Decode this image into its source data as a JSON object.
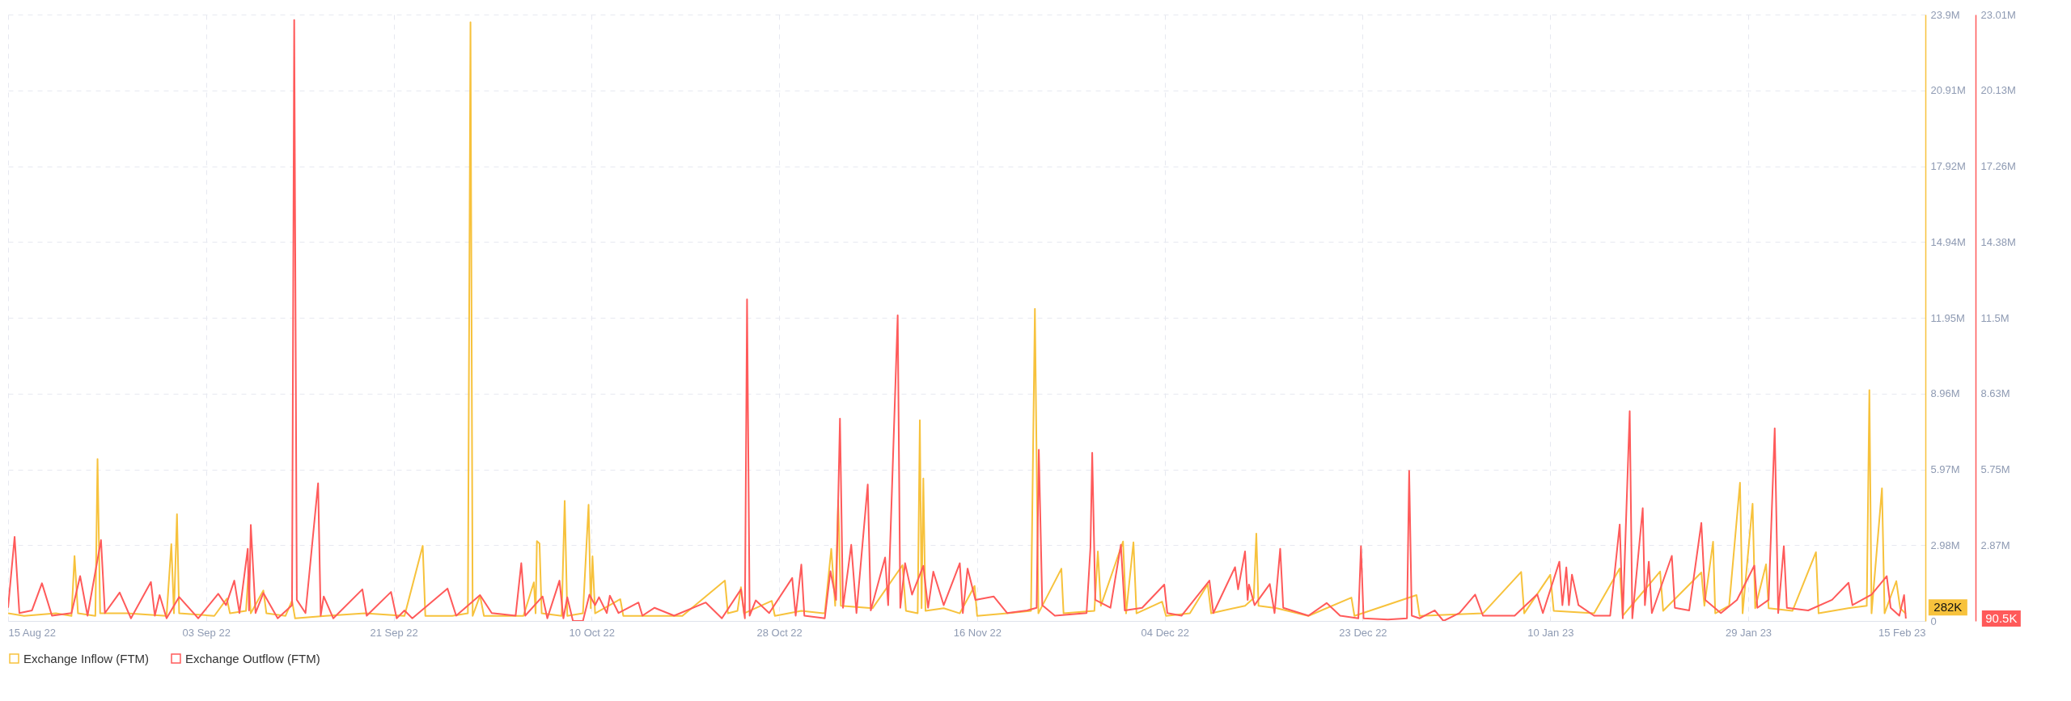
{
  "chart_data": {
    "type": "line",
    "xlim": [
      "2022-08-15",
      "2023-02-15"
    ],
    "xticks": [
      {
        "value": "2022-08-15",
        "label": "15 Aug 22"
      },
      {
        "value": "2022-09-03",
        "label": "03 Sep 22"
      },
      {
        "value": "2022-09-21",
        "label": "21 Sep 22"
      },
      {
        "value": "2022-10-10",
        "label": "10 Oct 22"
      },
      {
        "value": "2022-10-28",
        "label": "28 Oct 22"
      },
      {
        "value": "2022-11-16",
        "label": "16 Nov 22"
      },
      {
        "value": "2022-12-04",
        "label": "04 Dec 22"
      },
      {
        "value": "2022-12-23",
        "label": "23 Dec 22"
      },
      {
        "value": "2023-01-10",
        "label": "10 Jan 23"
      },
      {
        "value": "2023-01-29",
        "label": "29 Jan 23"
      },
      {
        "value": "2023-02-15",
        "label": "15 Feb 23"
      }
    ],
    "ylim": [
      0,
      23.9
    ],
    "yticks": [
      {
        "value": 0,
        "label": "0"
      },
      {
        "value": 2.98,
        "label": "2.98M"
      },
      {
        "value": 5.97,
        "label": "5.97M"
      },
      {
        "value": 8.96,
        "label": "8.96M"
      },
      {
        "value": 11.95,
        "label": "11.95M"
      },
      {
        "value": 14.94,
        "label": "14.94M"
      },
      {
        "value": 17.92,
        "label": "17.92M"
      },
      {
        "value": 20.91,
        "label": "20.91M"
      },
      {
        "value": 23.9,
        "label": "23.9M"
      }
    ],
    "y2lim": [
      0,
      23.01
    ],
    "y2ticks": [
      {
        "value": 2.87,
        "label": "2.87M"
      },
      {
        "value": 5.75,
        "label": "5.75M"
      },
      {
        "value": 8.63,
        "label": "8.63M"
      },
      {
        "value": 11.5,
        "label": "11.5M"
      },
      {
        "value": 14.38,
        "label": "14.38M"
      },
      {
        "value": 17.26,
        "label": "17.26M"
      },
      {
        "value": 20.13,
        "label": "20.13M"
      },
      {
        "value": 23.01,
        "label": "23.01M"
      }
    ],
    "grid": true,
    "legend": "bottom",
    "line_style": "solid",
    "annotations": [
      "282K",
      "90.5K"
    ],
    "series": [
      {
        "name": "Exchange Inflow (FTM)",
        "color": "#f7c23c",
        "x": [
          "2022-08-15T00:00",
          "2022-08-16T13:00",
          "2022-08-19T14:00",
          "2022-08-21T02:00",
          "2022-08-21T09:00",
          "2022-08-21T17:00",
          "2022-08-23T09:00",
          "2022-08-23T14:00",
          "2022-08-23T20:00",
          "2022-08-26T10:00",
          "2022-08-30T05:00",
          "2022-08-30T16:00",
          "2022-08-30T22:00",
          "2022-08-31T05:00",
          "2022-08-31T10:00",
          "2022-09-03T19:00",
          "2022-09-05T00:00",
          "2022-09-05T07:00",
          "2022-09-06T20:00",
          "2022-09-07T01:00",
          "2022-09-07T07:00",
          "2022-09-08T12:00",
          "2022-09-08T19:00",
          "2022-09-10T15:00",
          "2022-09-11T06:00",
          "2022-09-11T13:00",
          "2022-09-14T11:00",
          "2022-09-18T06:00",
          "2022-09-22T01:00",
          "2022-09-23T19:00",
          "2022-09-24T01:00",
          "2022-09-26T15:00",
          "2022-09-28T03:00",
          "2022-09-28T09:00",
          "2022-09-28T14:00",
          "2022-09-29T07:00",
          "2022-09-29T16:00",
          "2022-10-03T11:00",
          "2022-10-04T11:00",
          "2022-10-04T15:00",
          "2022-10-04T18:00",
          "2022-10-05T00:00",
          "2022-10-05T05:00",
          "2022-10-07T03:00",
          "2022-10-07T10:00",
          "2022-10-07T16:00",
          "2022-10-09T04:00",
          "2022-10-09T17:00",
          "2022-10-09T22:00",
          "2022-10-10T02:00",
          "2022-10-10T08:00",
          "2022-10-12T18:00",
          "2022-10-13T01:00",
          "2022-10-18T17:00",
          "2022-10-22T19:00",
          "2022-10-23T02:00",
          "2022-10-24T00:00",
          "2022-10-24T08:00",
          "2022-10-24T15:00",
          "2022-10-27T07:00",
          "2022-10-27T14:00",
          "2022-10-30T03:00",
          "2022-11-01T09:00",
          "2022-11-02T00:00",
          "2022-11-02T09:00",
          "2022-11-02T16:00",
          "2022-11-02T22:00",
          "2022-11-05T23:00",
          "2022-11-08T20:00",
          "2022-11-09T04:00",
          "2022-11-10T07:00",
          "2022-11-10T12:00",
          "2022-11-10T16:00",
          "2022-11-10T20:00",
          "2022-11-11T01:00",
          "2022-11-12T19:00",
          "2022-11-14T08:00",
          "2022-11-15T18:00",
          "2022-11-16T00:00",
          "2022-11-18T21:00",
          "2022-11-21T04:00",
          "2022-11-21T13:00",
          "2022-11-21T21:00",
          "2022-11-24T02:00",
          "2022-11-24T07:00",
          "2022-11-27T06:00",
          "2022-11-27T14:00",
          "2022-11-27T21:00",
          "2022-11-30T00:00",
          "2022-11-30T07:00",
          "2022-12-01T00:00",
          "2022-12-01T07:00",
          "2022-12-03T18:00",
          "2022-12-04T03:00",
          "2022-12-06T10:00",
          "2022-12-08T03:00",
          "2022-12-08T11:00",
          "2022-12-11T17:00",
          "2022-12-12T13:00",
          "2022-12-12T19:00",
          "2022-12-13T00:00",
          "2022-12-14T18:00",
          "2022-12-17T19:00",
          "2022-12-21T22:00",
          "2022-12-22T05:00",
          "2022-12-28T04:00",
          "2022-12-28T11:00",
          "2023-01-03T13:00",
          "2023-01-07T05:00",
          "2023-01-07T12:00",
          "2023-01-10T00:00",
          "2023-01-10T08:00",
          "2023-01-14T05:00",
          "2023-01-16T16:00",
          "2023-01-16T23:00",
          "2023-01-20T13:00",
          "2023-01-20T20:00",
          "2023-01-24T12:00",
          "2023-01-24T19:00",
          "2023-01-25T15:00",
          "2023-01-25T20:00",
          "2023-01-27T04:00",
          "2023-01-28T05:00",
          "2023-01-28T11:00",
          "2023-01-29T10:00",
          "2023-01-29T16:00",
          "2023-01-30T17:00",
          "2023-01-30T23:00",
          "2023-02-02T06:00",
          "2023-02-04T12:00",
          "2023-02-04T18:00",
          "2023-02-07T14:00",
          "2023-02-09T09:00",
          "2023-02-09T15:00",
          "2023-02-09T20:00",
          "2023-02-10T20:00",
          "2023-02-11T02:00",
          "2023-02-12T05:00",
          "2023-02-12T14:00",
          "2023-02-13T03:00"
        ],
        "values": [
          0.3,
          0.2,
          0.3,
          0.2,
          2.56,
          0.3,
          0.2,
          6.38,
          0.3,
          0.3,
          0.2,
          3.03,
          0.3,
          4.21,
          0.3,
          0.2,
          0.88,
          0.3,
          0.4,
          1.75,
          0.3,
          1.2,
          0.3,
          0.2,
          0.8,
          0.1,
          0.2,
          0.3,
          0.2,
          2.96,
          0.2,
          0.2,
          0.3,
          23.6,
          0.2,
          1.0,
          0.2,
          0.2,
          1.52,
          0.3,
          3.15,
          3.05,
          0.3,
          0.2,
          4.73,
          0.2,
          0.3,
          4.58,
          0.5,
          2.55,
          0.3,
          0.86,
          0.2,
          0.2,
          1.59,
          0.3,
          0.4,
          1.33,
          0.3,
          0.79,
          0.2,
          0.4,
          0.3,
          2.84,
          0.6,
          4.76,
          0.6,
          0.5,
          2.2,
          0.4,
          0.3,
          7.91,
          0.5,
          5.62,
          0.4,
          0.5,
          0.3,
          1.38,
          0.2,
          0.3,
          0.4,
          12.3,
          0.3,
          2.06,
          0.3,
          0.4,
          2.74,
          0.6,
          3.13,
          0.3,
          3.1,
          0.3,
          0.76,
          0.2,
          0.3,
          1.44,
          0.3,
          0.6,
          0.9,
          3.44,
          0.6,
          0.5,
          0.2,
          0.92,
          0.2,
          1.02,
          0.2,
          0.3,
          1.93,
          0.3,
          1.82,
          0.4,
          0.3,
          2.07,
          0.2,
          1.95,
          0.4,
          1.91,
          0.6,
          3.12,
          0.3,
          0.6,
          5.45,
          0.3,
          4.62,
          0.5,
          2.23,
          0.5,
          0.4,
          2.71,
          0.3,
          0.5,
          0.6,
          9.1,
          0.3,
          5.23,
          0.3,
          1.57,
          0.5,
          0.282
        ]
      },
      {
        "name": "Exchange Outflow (FTM)",
        "color": "#ff5a5a",
        "axis": "y2",
        "x": [
          "2022-08-15T00:00",
          "2022-08-15T15:00",
          "2022-08-16T02:00",
          "2022-08-17T07:00",
          "2022-08-18T06:00",
          "2022-08-19T05:00",
          "2022-08-21T02:00",
          "2022-08-21T22:00",
          "2022-08-22T15:00",
          "2022-08-23T22:00",
          "2022-08-24T07:00",
          "2022-08-25T17:00",
          "2022-08-26T19:00",
          "2022-08-28T17:00",
          "2022-08-29T02:00",
          "2022-08-29T13:00",
          "2022-08-30T05:00",
          "2022-08-31T10:00",
          "2022-09-02T06:00",
          "2022-09-04T04:00",
          "2022-09-04T22:00",
          "2022-09-05T17:00",
          "2022-09-06T05:00",
          "2022-09-07T00:00",
          "2022-09-07T03:00",
          "2022-09-07T07:00",
          "2022-09-07T18:00",
          "2022-09-08T12:00",
          "2022-09-09T21:00",
          "2022-09-11T06:00",
          "2022-09-11T11:00",
          "2022-09-11T17:00",
          "2022-09-12T13:00",
          "2022-09-13T18:00",
          "2022-09-14T00:00",
          "2022-09-14T07:00",
          "2022-09-15T05:00",
          "2022-09-18T00:00",
          "2022-09-18T10:00",
          "2022-09-20T18:00",
          "2022-09-21T07:00",
          "2022-09-22T01:00",
          "2022-09-22T19:00",
          "2022-09-26T04:00",
          "2022-09-27T00:00",
          "2022-09-29T07:00",
          "2022-09-30T10:00",
          "2022-10-02T17:00",
          "2022-10-03T06:00",
          "2022-10-03T15:00",
          "2022-10-05T07:00",
          "2022-10-05T18:00",
          "2022-10-06T22:00",
          "2022-10-07T07:00",
          "2022-10-07T16:00",
          "2022-10-08T05:00",
          "2022-10-09T04:00",
          "2022-10-09T19:00",
          "2022-10-10T08:00",
          "2022-10-10T17:00",
          "2022-10-11T11:00",
          "2022-10-11T18:00",
          "2022-10-12T14:00",
          "2022-10-14T12:00",
          "2022-10-14T21:00",
          "2022-10-16T01:00",
          "2022-10-17T22:00",
          "2022-10-20T23:00",
          "2022-10-22T12:00",
          "2022-10-24T08:00",
          "2022-10-24T17:00",
          "2022-10-24T22:00",
          "2022-10-25T04:00",
          "2022-10-25T18:00",
          "2022-10-27T01:00",
          "2022-10-29T06:00",
          "2022-10-29T14:00",
          "2022-10-30T03:00",
          "2022-10-30T10:00",
          "2022-11-01T09:00",
          "2022-11-01T22:00",
          "2022-11-02T11:00",
          "2022-11-02T20:00",
          "2022-11-03T03:00",
          "2022-11-03T22:00",
          "2022-11-04T10:00",
          "2022-11-05T12:00",
          "2022-11-05T19:00",
          "2022-11-07T04:00",
          "2022-11-07T11:00",
          "2022-11-08T09:00",
          "2022-11-08T15:00",
          "2022-11-09T02:00",
          "2022-11-09T18:00",
          "2022-11-10T20:00",
          "2022-11-11T07:00",
          "2022-11-11T19:00",
          "2022-11-12T19:00",
          "2022-11-14T08:00",
          "2022-11-14T15:00",
          "2022-11-15T02:00",
          "2022-11-15T20:00",
          "2022-11-17T14:00",
          "2022-11-18T21:00",
          "2022-11-20T19:00",
          "2022-11-21T17:00",
          "2022-11-21T22:00",
          "2022-11-22T06:00",
          "2022-11-23T11:00",
          "2022-11-26T12:00",
          "2022-11-26T21:00",
          "2022-11-27T01:00",
          "2022-11-27T08:00",
          "2022-11-28T19:00",
          "2022-11-29T19:00",
          "2022-11-30T04:00",
          "2022-12-01T20:00",
          "2022-12-03T23:00",
          "2022-12-04T06:00",
          "2022-12-05T15:00",
          "2022-12-08T07:00",
          "2022-12-08T16:00",
          "2022-12-10T18:00",
          "2022-12-11T01:00",
          "2022-12-11T17:00",
          "2022-12-11T23:00",
          "2022-12-12T02:00",
          "2022-12-12T15:00",
          "2022-12-14T02:00",
          "2022-12-14T13:00",
          "2022-12-15T02:00",
          "2022-12-15T09:00",
          "2022-12-17T19:00",
          "2022-12-19T13:00",
          "2022-12-20T20:00",
          "2022-12-22T14:00",
          "2022-12-22T20:00",
          "2022-12-23T02:00",
          "2022-12-25T10:00",
          "2022-12-27T06:00",
          "2022-12-27T11:00",
          "2022-12-27T17:00",
          "2022-12-28T11:00",
          "2022-12-29T22:00",
          "2022-12-30T18:00",
          "2023-01-01T07:00",
          "2023-01-02T19:00",
          "2023-01-03T13:00",
          "2023-01-06T14:00",
          "2023-01-08T18:00",
          "2023-01-09T07:00",
          "2023-01-10T21:00",
          "2023-01-11T04:00",
          "2023-01-11T13:00",
          "2023-01-11T19:00",
          "2023-01-12T02:00",
          "2023-01-12T17:00",
          "2023-01-14T05:00",
          "2023-01-15T18:00",
          "2023-01-16T16:00",
          "2023-01-16T23:00",
          "2023-01-17T15:00",
          "2023-01-17T21:00",
          "2023-01-18T21:00",
          "2023-01-19T02:00",
          "2023-01-19T11:00",
          "2023-01-19T18:00",
          "2023-01-21T16:00",
          "2023-01-21T23:00",
          "2023-01-23T08:00",
          "2023-01-24T12:00",
          "2023-01-24T21:00",
          "2023-01-26T09:00",
          "2023-01-27T22:00",
          "2023-01-29T14:00",
          "2023-01-29T21:00",
          "2023-01-30T23:00",
          "2023-01-31T13:00",
          "2023-01-31T21:00",
          "2023-02-01T10:00",
          "2023-02-01T17:00",
          "2023-02-03T18:00",
          "2023-02-06T01:00",
          "2023-02-07T15:00",
          "2023-02-08T00:00",
          "2023-02-09T20:00",
          "2023-02-11T07:00",
          "2023-02-11T16:00",
          "2023-02-12T12:00",
          "2023-02-12T23:00",
          "2023-02-13T03:00"
        ],
        "values": [
          0.5,
          3.19,
          0.3,
          0.4,
          1.43,
          0.2,
          0.3,
          1.7,
          0.2,
          3.07,
          0.3,
          1.08,
          0.1,
          1.48,
          0.2,
          0.98,
          0.1,
          0.91,
          0.1,
          1.03,
          0.6,
          1.53,
          0.3,
          2.74,
          0.4,
          3.64,
          0.3,
          1.06,
          0.1,
          0.6,
          22.8,
          0.8,
          0.3,
          5.22,
          0.2,
          0.93,
          0.1,
          1.2,
          0.2,
          1.1,
          0.1,
          0.4,
          0.1,
          1.23,
          0.2,
          0.98,
          0.3,
          0.2,
          2.19,
          0.2,
          0.93,
          0.1,
          1.53,
          0.1,
          0.9,
          0,
          0,
          1.0,
          0.6,
          0.9,
          0.3,
          0.96,
          0.3,
          0.7,
          0.2,
          0.5,
          0.2,
          0.7,
          0.1,
          1.2,
          0.1,
          12.2,
          0.2,
          0.78,
          0.3,
          1.63,
          0.2,
          2.14,
          0.2,
          0.1,
          1.89,
          0.8,
          7.68,
          0.5,
          2.89,
          0.3,
          5.18,
          0.4,
          2.41,
          0.6,
          11.6,
          0.5,
          2.19,
          1.0,
          2.09,
          0.5,
          1.87,
          0.6,
          2.19,
          0.3,
          1.99,
          0.8,
          0.93,
          0.3,
          0.4,
          0.5,
          6.5,
          0.6,
          0.2,
          0.3,
          2.8,
          6.38,
          0.8,
          0.5,
          2.89,
          0.4,
          0.5,
          1.38,
          0.3,
          0.2,
          1.53,
          0.3,
          2.04,
          1.2,
          2.64,
          0.8,
          1.38,
          0.6,
          1.4,
          0.3,
          2.74,
          0.5,
          0.2,
          0.68,
          0.2,
          0.1,
          2.84,
          0.1,
          0.05,
          0.1,
          5.7,
          0.2,
          0.1,
          0.4,
          0,
          0.3,
          1.0,
          0.2,
          0.2,
          1.01,
          0.3,
          2.25,
          0.6,
          2.03,
          0.6,
          1.76,
          0.6,
          0.2,
          0.2,
          3.66,
          0.1,
          7.96,
          0.1,
          4.28,
          0.6,
          2.25,
          0.3,
          2.47,
          0.5,
          0.4,
          3.72,
          0.8,
          0.3,
          0.8,
          2.1,
          0.5,
          0.8,
          7.31,
          0.3,
          2.84,
          0.5,
          0.4,
          0.8,
          1.45,
          0.6,
          1.0,
          1.7,
          0.5,
          0.2,
          0.98,
          0.0905
        ]
      }
    ]
  }
}
